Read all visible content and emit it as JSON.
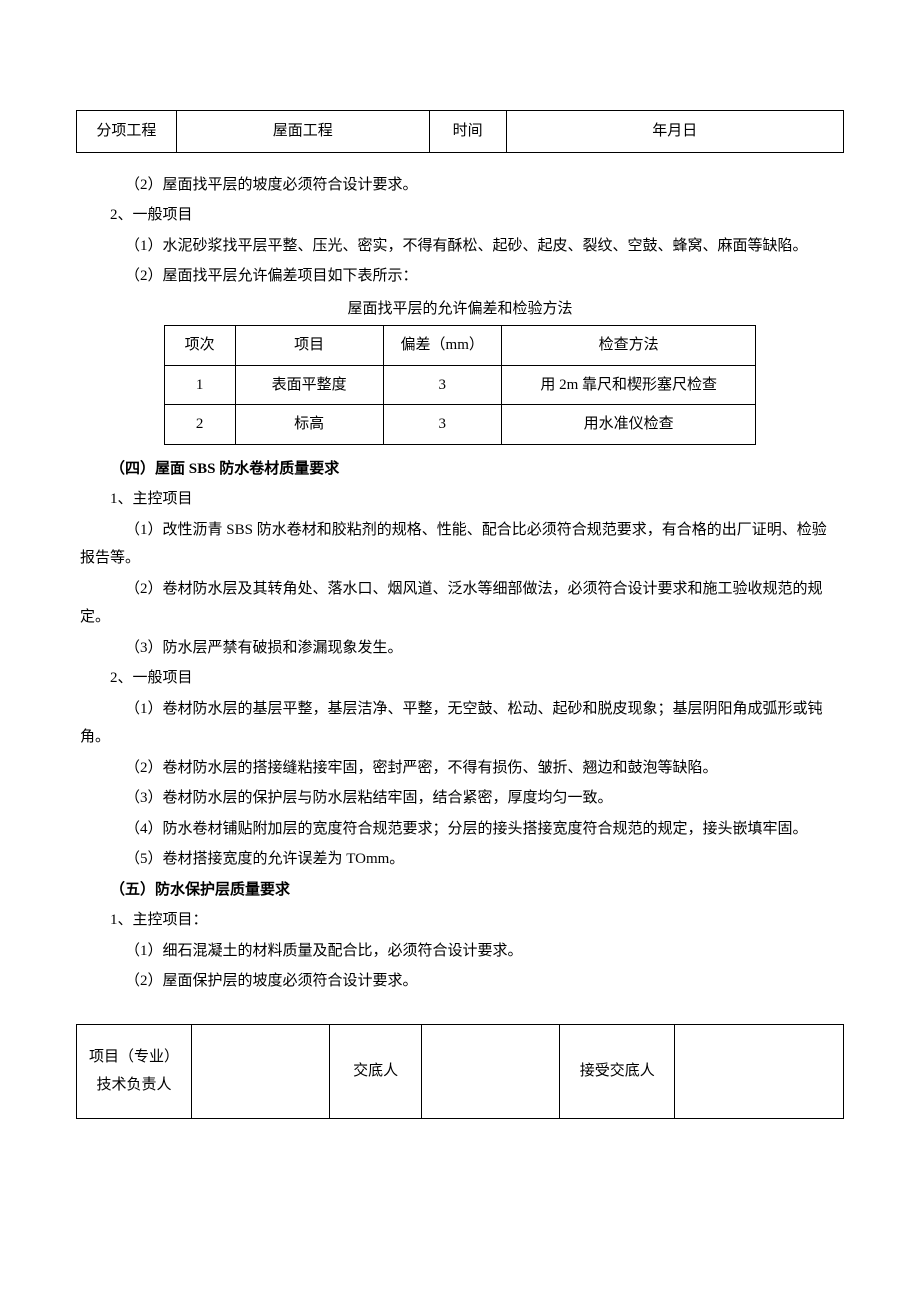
{
  "header": {
    "col1_label": "分项工程",
    "col2_value": "屋面工程",
    "col3_label": "时间",
    "col4_value": "年月日"
  },
  "body": {
    "p1": "（2）屋面找平层的坡度必须符合设计要求。",
    "p2": "2、一般项目",
    "p3": "（1）水泥砂浆找平层平整、压光、密实，不得有酥松、起砂、起皮、裂纹、空鼓、蜂窝、麻面等缺陷。",
    "p4": "（2）屋面找平层允许偏差项目如下表所示：",
    "table_caption": "屋面找平层的允许偏差和检验方法",
    "deviation_table": {
      "headers": [
        "项次",
        "项目",
        "偏差（mm）",
        "检查方法"
      ],
      "rows": [
        [
          "1",
          "表面平整度",
          "3",
          "用 2m 靠尺和楔形塞尺检查"
        ],
        [
          "2",
          "标高",
          "3",
          "用水准仪检查"
        ]
      ]
    },
    "section4": "（四）屋面 SBS 防水卷材质量要求",
    "p5": "1、主控项目",
    "p6": "（1）改性沥青 SBS 防水卷材和胶粘剂的规格、性能、配合比必须符合规范要求，有合格的出厂证明、检验报告等。",
    "p7": "（2）卷材防水层及其转角处、落水口、烟风道、泛水等细部做法，必须符合设计要求和施工验收规范的规定。",
    "p8": "（3）防水层严禁有破损和渗漏现象发生。",
    "p9": "2、一般项目",
    "p10": "（1）卷材防水层的基层平整，基层洁净、平整，无空鼓、松动、起砂和脱皮现象；基层阴阳角成弧形或钝角。",
    "p11": "（2）卷材防水层的搭接缝粘接牢固，密封严密，不得有损伤、皱折、翘边和鼓泡等缺陷。",
    "p12": "（3）卷材防水层的保护层与防水层粘结牢固，结合紧密，厚度均匀一致。",
    "p13": "（4）防水卷材铺贴附加层的宽度符合规范要求；分层的接头搭接宽度符合规范的规定，接头嵌填牢固。",
    "p14": "（5）卷材搭接宽度的允许误差为 TOmm。",
    "section5": "（五）防水保护层质量要求",
    "p15": "1、主控项目：",
    "p16": "（1）细石混凝土的材料质量及配合比，必须符合设计要求。",
    "p17": "（2）屋面保护层的坡度必须符合设计要求。"
  },
  "footer": {
    "col1": "项目（专业）技术负责人",
    "col2": "",
    "col3": "交底人",
    "col4": "",
    "col5": "接受交底人",
    "col6": ""
  }
}
